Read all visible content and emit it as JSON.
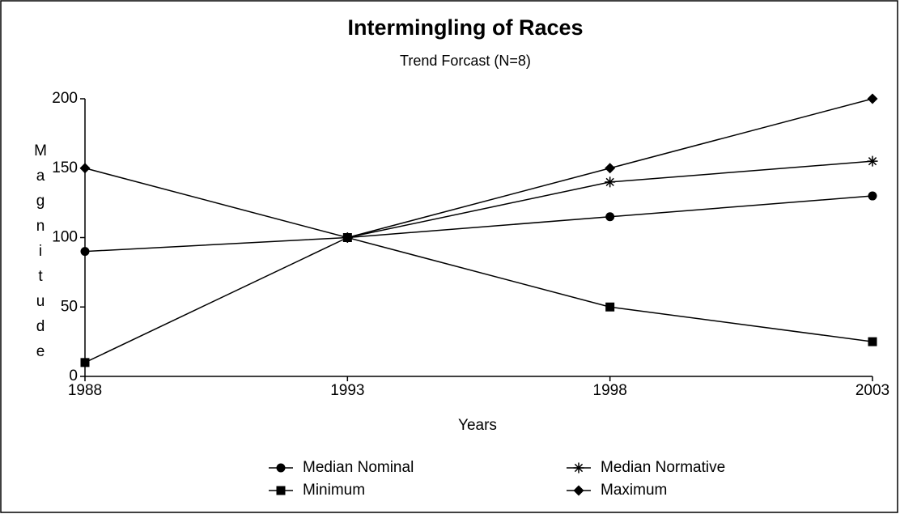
{
  "chart_data": {
    "type": "line",
    "title": "Intermingling of Races",
    "subtitle": "Trend Forcast (N=8)",
    "x_label": "Years",
    "y_label": "Magnitude",
    "x": [
      1988,
      1993,
      1998,
      2003
    ],
    "xlim": [
      1988,
      2003
    ],
    "xticks": [
      1988,
      1993,
      1998,
      2003
    ],
    "ylim": [
      0,
      200
    ],
    "yticks": [
      0,
      50,
      100,
      150,
      200
    ],
    "series": [
      {
        "name": "Median Nominal",
        "color": "#000000",
        "marker": "circle",
        "values": [
          90,
          100,
          115,
          130
        ]
      },
      {
        "name": "Median Normative",
        "color": "#000000",
        "marker": "star",
        "values": [
          null,
          100,
          140,
          155
        ]
      },
      {
        "name": "Minimum",
        "color": "#000000",
        "marker": "square",
        "values": [
          10,
          100,
          50,
          25
        ]
      },
      {
        "name": "Maximum",
        "color": "#000000",
        "marker": "diamond",
        "values": [
          150,
          100,
          150,
          200
        ]
      }
    ]
  }
}
